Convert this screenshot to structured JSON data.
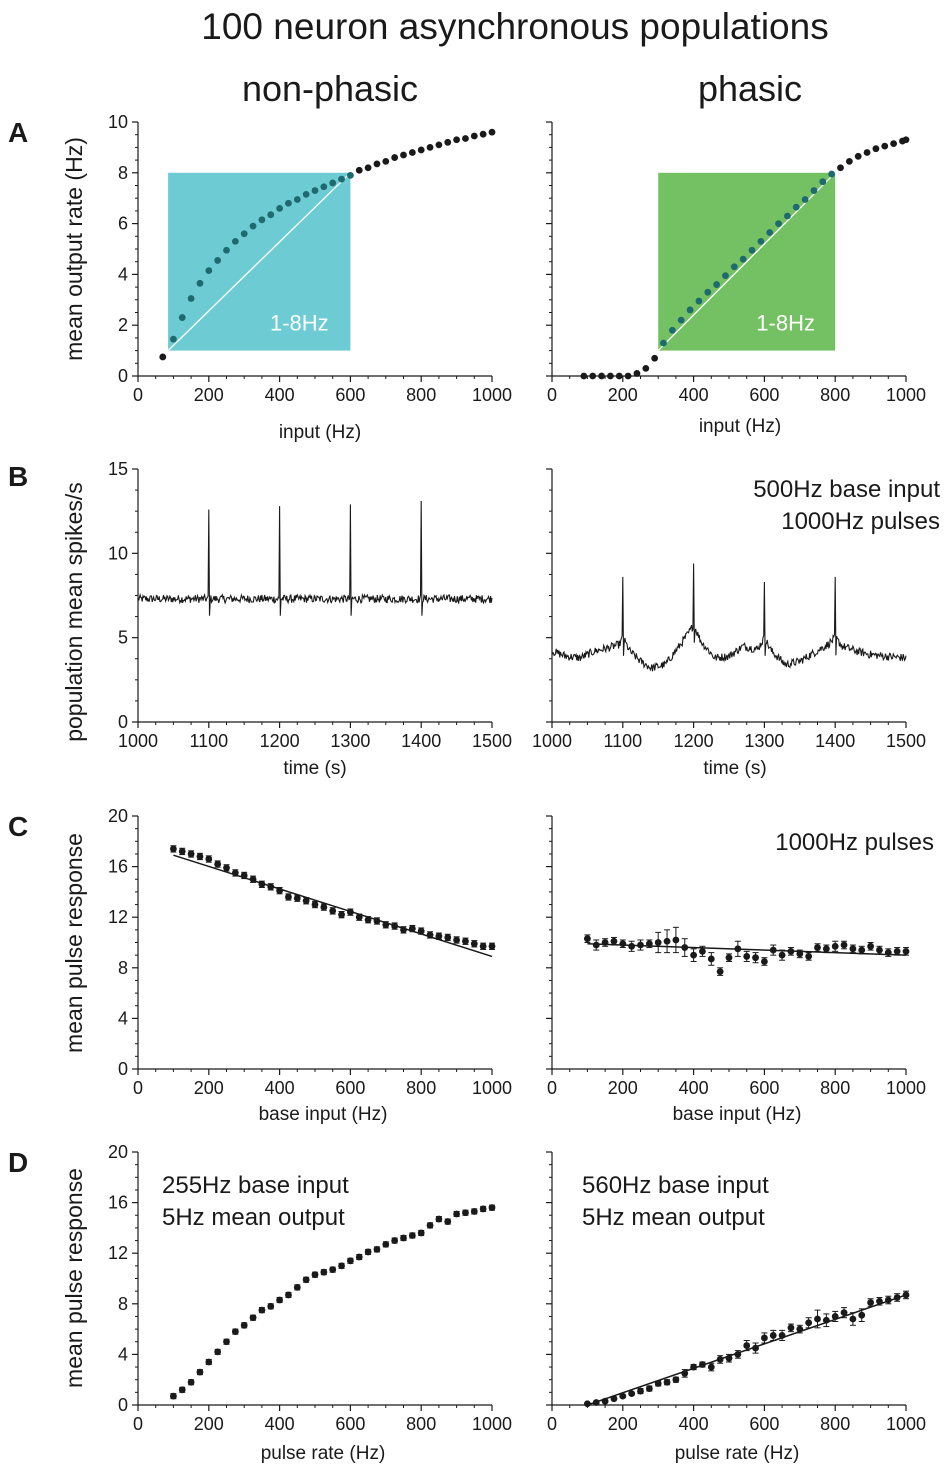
{
  "title": "100 neuron asynchronous populations",
  "columns": [
    "non-phasic",
    "phasic"
  ],
  "colors": {
    "cyan_box": "#6ccbd3",
    "green_box": "#74c163",
    "ink": "#1a1a1a"
  },
  "chart_data": [
    {
      "id": "A-left",
      "panel_label": "A",
      "type": "scatter",
      "xlabel": "input (Hz)",
      "ylabel": "mean output rate (Hz)",
      "xlim": [
        0,
        1000
      ],
      "ylim": [
        0,
        10
      ],
      "xticks": [
        0,
        200,
        400,
        600,
        800,
        1000
      ],
      "yticks": [
        0,
        2,
        4,
        6,
        8,
        10
      ],
      "highlight": {
        "label": "1-8Hz",
        "x": [
          85,
          600
        ],
        "y": [
          1,
          8
        ],
        "color": "#6ccbd3"
      },
      "diagonal": {
        "x": [
          85,
          600
        ],
        "y": [
          1,
          8
        ]
      },
      "series": [
        {
          "x": [
            70,
            100,
            125,
            150,
            175,
            200,
            225,
            250,
            275,
            300,
            325,
            350,
            375,
            400,
            425,
            450,
            475,
            500,
            525,
            550,
            575,
            600,
            625,
            650,
            675,
            700,
            725,
            750,
            775,
            800,
            825,
            850,
            875,
            900,
            925,
            950,
            975,
            1000
          ],
          "y": [
            0.75,
            1.45,
            2.3,
            3.05,
            3.65,
            4.15,
            4.55,
            4.95,
            5.3,
            5.6,
            5.9,
            6.15,
            6.35,
            6.6,
            6.8,
            6.95,
            7.15,
            7.3,
            7.45,
            7.6,
            7.75,
            7.9,
            8.1,
            8.2,
            8.35,
            8.45,
            8.6,
            8.7,
            8.8,
            8.9,
            9.0,
            9.1,
            9.2,
            9.3,
            9.35,
            9.45,
            9.52,
            9.6
          ]
        }
      ]
    },
    {
      "id": "A-right",
      "type": "scatter",
      "xlabel": "input (Hz)",
      "ylabel": "",
      "xlim": [
        0,
        1000
      ],
      "ylim": [
        0,
        10
      ],
      "xticks": [
        0,
        200,
        400,
        600,
        800,
        1000
      ],
      "yticks": [
        0,
        2,
        4,
        6,
        8,
        10
      ],
      "highlight": {
        "label": "1-8Hz",
        "x": [
          300,
          800
        ],
        "y": [
          1,
          8
        ],
        "color": "#74c163"
      },
      "diagonal": {
        "x": [
          300,
          800
        ],
        "y": [
          1,
          8
        ]
      },
      "series": [
        {
          "x": [
            90,
            115,
            140,
            165,
            190,
            215,
            240,
            265,
            290,
            315,
            340,
            365,
            390,
            415,
            440,
            465,
            490,
            515,
            540,
            565,
            590,
            615,
            640,
            665,
            690,
            715,
            740,
            765,
            790,
            815,
            840,
            865,
            890,
            915,
            940,
            965,
            990,
            1000
          ],
          "y": [
            0,
            0,
            0,
            0,
            0,
            0,
            0.1,
            0.3,
            0.7,
            1.3,
            1.8,
            2.2,
            2.6,
            2.95,
            3.3,
            3.6,
            3.95,
            4.3,
            4.6,
            4.95,
            5.3,
            5.65,
            6.0,
            6.3,
            6.65,
            6.95,
            7.3,
            7.65,
            7.95,
            8.2,
            8.45,
            8.65,
            8.8,
            8.95,
            9.05,
            9.15,
            9.25,
            9.3
          ]
        }
      ]
    },
    {
      "id": "B-left",
      "panel_label": "B",
      "type": "line",
      "xlabel": "time (s)",
      "ylabel": "population mean spikes/s",
      "xlim": [
        1000,
        1500
      ],
      "ylim": [
        0,
        15
      ],
      "xticks": [
        1000,
        1100,
        1200,
        1300,
        1400,
        1500
      ],
      "yticks": [
        0,
        5,
        10,
        15
      ],
      "baseline": 7.3,
      "noise": 0.15,
      "peaks": [
        [
          1100,
          12.6
        ],
        [
          1200,
          12.8
        ],
        [
          1300,
          12.9
        ],
        [
          1400,
          13.1
        ]
      ]
    },
    {
      "id": "B-right",
      "type": "line",
      "xlabel": "time (s)",
      "ylabel": "",
      "xlim": [
        1000,
        1500
      ],
      "ylim": [
        0,
        15
      ],
      "xticks": [
        1000,
        1100,
        1200,
        1300,
        1400,
        1500
      ],
      "yticks": [
        0,
        5,
        10,
        15
      ],
      "annotation": [
        "500Hz base input",
        "1000Hz pulses"
      ],
      "envelope_x": [
        1000,
        1020,
        1040,
        1060,
        1080,
        1095,
        1100,
        1110,
        1125,
        1140,
        1160,
        1180,
        1195,
        1200,
        1210,
        1230,
        1250,
        1270,
        1290,
        1300,
        1310,
        1330,
        1350,
        1370,
        1390,
        1400,
        1410,
        1430,
        1450,
        1470,
        1500
      ],
      "envelope_y": [
        4.2,
        3.9,
        3.8,
        4.2,
        4.4,
        4.6,
        5.0,
        4.2,
        3.6,
        3.2,
        3.4,
        4.5,
        5.4,
        5.8,
        4.8,
        3.8,
        3.9,
        4.5,
        4.3,
        5.0,
        4.2,
        3.4,
        3.6,
        4.1,
        4.6,
        5.0,
        4.5,
        4.2,
        4.0,
        3.9,
        3.8
      ],
      "peaks": [
        [
          1100,
          8.6
        ],
        [
          1200,
          9.4
        ],
        [
          1300,
          8.3
        ],
        [
          1400,
          8.6
        ]
      ],
      "noise": 0.15
    },
    {
      "id": "C-left",
      "panel_label": "C",
      "type": "scatter",
      "xlabel": "base input (Hz)",
      "ylabel": "mean pulse response",
      "xlim": [
        0,
        1000
      ],
      "ylim": [
        0,
        20
      ],
      "xticks": [
        0,
        200,
        400,
        600,
        800,
        1000
      ],
      "yticks": [
        0,
        4,
        8,
        12,
        16,
        20
      ],
      "fit": {
        "x": [
          100,
          1000
        ],
        "y": [
          16.9,
          8.9
        ]
      },
      "series": [
        {
          "x": [
            100,
            125,
            150,
            175,
            200,
            225,
            250,
            275,
            300,
            325,
            350,
            375,
            400,
            425,
            450,
            475,
            500,
            525,
            550,
            575,
            600,
            625,
            650,
            675,
            700,
            725,
            750,
            775,
            800,
            825,
            850,
            875,
            900,
            925,
            950,
            975,
            1000
          ],
          "y": [
            17.4,
            17.2,
            17.0,
            16.8,
            16.6,
            16.2,
            15.9,
            15.5,
            15.3,
            15.0,
            14.6,
            14.4,
            14.1,
            13.6,
            13.5,
            13.3,
            13.0,
            12.8,
            12.5,
            12.2,
            12.4,
            12.0,
            11.8,
            11.7,
            11.4,
            11.3,
            11.0,
            11.1,
            10.9,
            10.6,
            10.5,
            10.4,
            10.2,
            10.1,
            9.9,
            9.7,
            9.7
          ],
          "err": 0.25
        }
      ]
    },
    {
      "id": "C-right",
      "type": "scatter",
      "xlabel": "base input (Hz)",
      "ylabel": "",
      "xlim": [
        0,
        1000
      ],
      "ylim": [
        0,
        20
      ],
      "xticks": [
        0,
        200,
        400,
        600,
        800,
        1000
      ],
      "yticks": [
        0,
        4,
        8,
        12,
        16,
        20
      ],
      "annotation": [
        "1000Hz pulses"
      ],
      "fit": {
        "x": [
          100,
          1000
        ],
        "y": [
          9.9,
          9.0
        ]
      },
      "series": [
        {
          "x": [
            100,
            125,
            150,
            175,
            200,
            225,
            250,
            275,
            300,
            325,
            350,
            375,
            400,
            425,
            450,
            475,
            500,
            525,
            550,
            575,
            600,
            625,
            650,
            675,
            700,
            725,
            750,
            775,
            800,
            825,
            850,
            875,
            900,
            925,
            950,
            975,
            1000
          ],
          "y": [
            10.3,
            9.8,
            10.0,
            10.1,
            9.9,
            9.7,
            9.8,
            9.9,
            10.0,
            10.1,
            10.2,
            9.6,
            9.0,
            9.3,
            8.7,
            7.7,
            8.8,
            9.5,
            8.9,
            8.8,
            8.5,
            9.4,
            9.0,
            9.3,
            9.1,
            8.9,
            9.6,
            9.5,
            9.7,
            9.8,
            9.5,
            9.4,
            9.7,
            9.4,
            9.2,
            9.3,
            9.3
          ],
          "err": [
            0.3,
            0.4,
            0.3,
            0.3,
            0.3,
            0.4,
            0.4,
            0.3,
            0.8,
            0.9,
            1.0,
            0.7,
            0.5,
            0.4,
            0.5,
            0.3,
            0.3,
            0.6,
            0.4,
            0.4,
            0.3,
            0.4,
            0.4,
            0.3,
            0.3,
            0.3,
            0.3,
            0.3,
            0.4,
            0.3,
            0.3,
            0.3,
            0.3,
            0.3,
            0.3,
            0.3,
            0.3
          ]
        }
      ]
    },
    {
      "id": "D-left",
      "panel_label": "D",
      "type": "scatter",
      "xlabel": "pulse rate (Hz)",
      "ylabel": "mean pulse response",
      "xlim": [
        0,
        1000
      ],
      "ylim": [
        0,
        20
      ],
      "xticks": [
        0,
        200,
        400,
        600,
        800,
        1000
      ],
      "yticks": [
        0,
        4,
        8,
        12,
        16,
        20
      ],
      "annotation": [
        "255Hz base input",
        "5Hz mean output"
      ],
      "series": [
        {
          "x": [
            100,
            125,
            150,
            175,
            200,
            225,
            250,
            275,
            300,
            325,
            350,
            375,
            400,
            425,
            450,
            475,
            500,
            525,
            550,
            575,
            600,
            625,
            650,
            675,
            700,
            725,
            750,
            775,
            800,
            825,
            850,
            875,
            900,
            925,
            950,
            975,
            1000
          ],
          "y": [
            0.7,
            1.2,
            1.8,
            2.6,
            3.4,
            4.2,
            5.0,
            5.8,
            6.3,
            6.9,
            7.5,
            7.8,
            8.3,
            8.7,
            9.3,
            9.9,
            10.3,
            10.5,
            10.7,
            11.0,
            11.4,
            11.7,
            12.1,
            12.3,
            12.7,
            13.0,
            13.2,
            13.4,
            13.6,
            14.2,
            14.7,
            14.5,
            15.1,
            15.2,
            15.3,
            15.5,
            15.6
          ],
          "err": 0.2
        }
      ]
    },
    {
      "id": "D-right",
      "type": "scatter",
      "xlabel": "pulse rate (Hz)",
      "ylabel": "",
      "xlim": [
        0,
        1000
      ],
      "ylim": [
        0,
        20
      ],
      "xticks": [
        0,
        200,
        400,
        600,
        800,
        1000
      ],
      "yticks": [
        0,
        4,
        8,
        12,
        16,
        20
      ],
      "annotation": [
        "560Hz base input",
        "5Hz mean output"
      ],
      "fit": {
        "x": [
          100,
          1000
        ],
        "y": [
          0.0,
          8.7
        ]
      },
      "series": [
        {
          "x": [
            100,
            125,
            150,
            175,
            200,
            225,
            250,
            275,
            300,
            325,
            350,
            375,
            400,
            425,
            450,
            475,
            500,
            525,
            550,
            575,
            600,
            625,
            650,
            675,
            700,
            725,
            750,
            775,
            800,
            825,
            850,
            875,
            900,
            925,
            950,
            975,
            1000
          ],
          "y": [
            0.1,
            0.2,
            0.3,
            0.5,
            0.7,
            0.9,
            1.1,
            1.3,
            1.7,
            1.8,
            2.0,
            2.5,
            3.0,
            3.2,
            3.0,
            3.6,
            3.7,
            4.0,
            4.7,
            4.5,
            5.3,
            5.5,
            5.5,
            6.1,
            6.0,
            6.5,
            6.8,
            6.7,
            7.0,
            7.3,
            6.8,
            7.1,
            8.1,
            8.2,
            8.3,
            8.5,
            8.7
          ],
          "err": [
            0.1,
            0.1,
            0.1,
            0.1,
            0.1,
            0.1,
            0.2,
            0.2,
            0.2,
            0.2,
            0.2,
            0.3,
            0.2,
            0.2,
            0.3,
            0.3,
            0.3,
            0.3,
            0.4,
            0.4,
            0.4,
            0.4,
            0.4,
            0.3,
            0.3,
            0.4,
            0.7,
            0.5,
            0.4,
            0.4,
            0.5,
            0.5,
            0.3,
            0.3,
            0.3,
            0.3,
            0.3
          ]
        }
      ]
    }
  ]
}
